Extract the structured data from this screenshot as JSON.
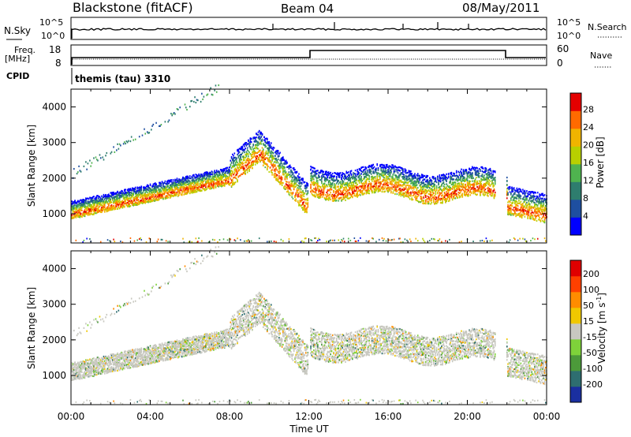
{
  "header": {
    "station": "Blackstone (fitACF)",
    "beam": "Beam 04",
    "date": "08/May/2011"
  },
  "top_panels": {
    "nsky_label": "N.Sky",
    "nsky_ticks": [
      "10^5",
      "10^0"
    ],
    "nsearch_label": "N.Search",
    "nsearch_ticks": [
      "10^5",
      "10^0"
    ],
    "freq_label": "Freq.",
    "freq_unit": "[MHz]",
    "freq_ticks": [
      "18",
      "8"
    ],
    "nave_label": "Nave",
    "nave_ticks": [
      "60",
      "0"
    ],
    "cpid_label": "CPID",
    "cpid_value": "themis (tau) 3310"
  },
  "chart_data": [
    {
      "type": "heatmap",
      "name": "power",
      "ylabel": "Slant Range [km]",
      "xlabel": "Time UT",
      "yticks": [
        "1000",
        "2000",
        "3000",
        "4000"
      ],
      "xticks": [
        "00:00",
        "04:00",
        "08:00",
        "12:00",
        "16:00",
        "20:00",
        "00:00"
      ],
      "xlim_hours": [
        0,
        24
      ],
      "ylim_km": [
        180,
        4500
      ],
      "colorbar_label": "Power [dB]",
      "colorbar_ticks": [
        "28",
        "24",
        "20",
        "16",
        "12",
        "8",
        "4"
      ],
      "colorbar_colors": [
        "#0000ff",
        "#1e4fa0",
        "#2e7d6e",
        "#4fb34f",
        "#b8d000",
        "#f0b400",
        "#ff6a00",
        "#e40000"
      ]
    },
    {
      "type": "heatmap",
      "name": "velocity",
      "ylabel": "Slant Range [km]",
      "xlabel": "Time UT",
      "yticks": [
        "1000",
        "2000",
        "3000",
        "4000"
      ],
      "xticks": [
        "00:00",
        "04:00",
        "08:00",
        "12:00",
        "16:00",
        "20:00",
        "00:00"
      ],
      "xlim_hours": [
        0,
        24
      ],
      "ylim_km": [
        180,
        4500
      ],
      "colorbar_label": "Velocity [m s^-1]",
      "colorbar_ticks": [
        "200",
        "100",
        "50",
        "15",
        "-15",
        "-50",
        "-100",
        "-200"
      ],
      "colorbar_colors": [
        "#1a2fa0",
        "#2e6e70",
        "#4c9a3a",
        "#7ed23a",
        "#c8c8c0",
        "#f0c800",
        "#ff8c00",
        "#ff4000",
        "#e00000"
      ]
    }
  ]
}
